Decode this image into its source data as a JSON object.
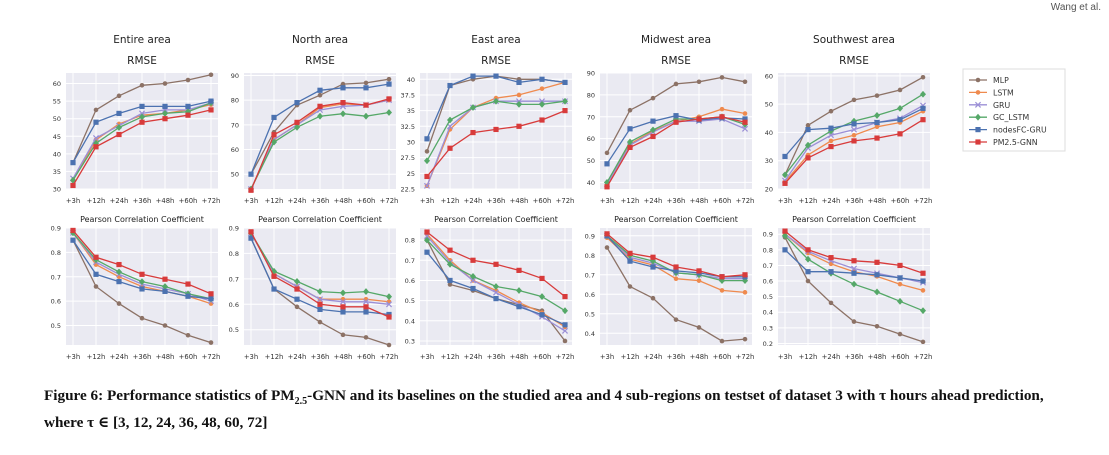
{
  "page_header": "Wang et al.",
  "caption": {
    "lead": "Figure 6: Performance statistics of PM",
    "sub": "2.5",
    "rest": "-GNN and its baselines on the studied area and 4 sub-regions on testset of dataset 3 with τ hours ahead prediction, where τ ∈ [3, 12, 24, 36, 48, 60, 72]"
  },
  "legend": [
    {
      "name": "MLP",
      "color": "#8c7266",
      "marker": "dot"
    },
    {
      "name": "LSTM",
      "color": "#ef8a4e",
      "marker": "dot"
    },
    {
      "name": "GRU",
      "color": "#9b8fd6",
      "marker": "x"
    },
    {
      "name": "GC_LSTM",
      "color": "#55a868",
      "marker": "diamond"
    },
    {
      "name": "nodesFC-GRU",
      "color": "#4c72b0",
      "marker": "square"
    },
    {
      "name": "PM2.5-GNN",
      "color": "#d83b3b",
      "marker": "square"
    }
  ],
  "chart_data": [
    {
      "type": "line",
      "region": "Entire area",
      "title": "RMSE",
      "categories": [
        "+3h",
        "+12h",
        "+24h",
        "+36h",
        "+48h",
        "+60h",
        "+72h"
      ],
      "ylim": [
        30,
        63
      ],
      "yticks": [
        30,
        35,
        40,
        45,
        50,
        55,
        60
      ],
      "series": [
        {
          "name": "MLP",
          "values": [
            37.5,
            52.5,
            56.5,
            59.5,
            60,
            61,
            62.5
          ]
        },
        {
          "name": "LSTM",
          "values": [
            32.5,
            44,
            48.5,
            51,
            51.5,
            52.5,
            54
          ]
        },
        {
          "name": "GRU",
          "values": [
            33,
            44.5,
            48,
            51.5,
            52.5,
            52.5,
            54.5
          ]
        },
        {
          "name": "GC_LSTM",
          "values": [
            32.5,
            43,
            47.5,
            50.5,
            51.5,
            52,
            54.5
          ]
        },
        {
          "name": "nodesFC-GRU",
          "values": [
            37.5,
            49,
            51.5,
            53.5,
            53.5,
            53.5,
            55
          ]
        },
        {
          "name": "PM2.5-GNN",
          "values": [
            31,
            42,
            45.5,
            49,
            50,
            51,
            52.5
          ]
        }
      ]
    },
    {
      "type": "line",
      "region": "North area",
      "title": "RMSE",
      "categories": [
        "+3h",
        "+12h",
        "+24h",
        "+36h",
        "+48h",
        "+60h",
        "+72h"
      ],
      "ylim": [
        44,
        91
      ],
      "yticks": [
        50,
        60,
        70,
        80,
        90
      ],
      "series": [
        {
          "name": "MLP",
          "values": [
            50,
            67,
            78,
            82,
            86.5,
            87,
            88.5
          ]
        },
        {
          "name": "LSTM",
          "values": [
            44,
            64,
            70,
            77,
            78.5,
            78,
            80
          ]
        },
        {
          "name": "GRU",
          "values": [
            44,
            64,
            70,
            76,
            77.5,
            78,
            80
          ]
        },
        {
          "name": "GC_LSTM",
          "values": [
            44,
            63,
            69,
            73.5,
            74.5,
            73.5,
            75
          ]
        },
        {
          "name": "nodesFC-GRU",
          "values": [
            50,
            73,
            79,
            84,
            85,
            85,
            86.5
          ]
        },
        {
          "name": "PM2.5-GNN",
          "values": [
            43.5,
            66,
            71,
            77.5,
            79,
            78,
            80.5
          ]
        }
      ]
    },
    {
      "type": "line",
      "region": "East area",
      "title": "RMSE",
      "categories": [
        "+3h",
        "+12h",
        "+24h",
        "+36h",
        "+48h",
        "+60h",
        "+72h"
      ],
      "ylim": [
        22.5,
        41
      ],
      "yticks": [
        22.5,
        25,
        27.5,
        30,
        32.5,
        35,
        37.5,
        40
      ],
      "series": [
        {
          "name": "MLP",
          "values": [
            28.5,
            39,
            40,
            40.5,
            40,
            40,
            39.5
          ]
        },
        {
          "name": "LSTM",
          "values": [
            23,
            32,
            35.5,
            37,
            37.5,
            38.5,
            39.5
          ]
        },
        {
          "name": "GRU",
          "values": [
            23,
            32.5,
            35.5,
            36.5,
            36.5,
            36.5,
            36.5
          ]
        },
        {
          "name": "GC_LSTM",
          "values": [
            27,
            33.5,
            35.5,
            36.5,
            36,
            36,
            36.5
          ]
        },
        {
          "name": "nodesFC-GRU",
          "values": [
            30.5,
            39,
            40.5,
            40.5,
            39.5,
            40,
            39.5
          ]
        },
        {
          "name": "PM2.5-GNN",
          "values": [
            24.5,
            29,
            31.5,
            32,
            32.5,
            33.5,
            35
          ]
        }
      ]
    },
    {
      "type": "line",
      "region": "Midwest area",
      "title": "RMSE",
      "categories": [
        "+3h",
        "+12h",
        "+24h",
        "+36h",
        "+48h",
        "+60h",
        "+72h"
      ],
      "ylim": [
        37,
        90
      ],
      "yticks": [
        40,
        50,
        60,
        70,
        80,
        90
      ],
      "series": [
        {
          "name": "MLP",
          "values": [
            53.5,
            73,
            78.5,
            85,
            86,
            88,
            86
          ]
        },
        {
          "name": "LSTM",
          "values": [
            39,
            57.5,
            63.5,
            68,
            70,
            73.5,
            71.5
          ]
        },
        {
          "name": "GRU",
          "values": [
            39,
            57,
            63,
            68,
            68,
            69,
            64.5
          ]
        },
        {
          "name": "GC_LSTM",
          "values": [
            40,
            58.5,
            64,
            69,
            69,
            70,
            66.5
          ]
        },
        {
          "name": "nodesFC-GRU",
          "values": [
            48.5,
            64.5,
            68,
            70.5,
            68.5,
            69.5,
            69
          ]
        },
        {
          "name": "PM2.5-GNN",
          "values": [
            38,
            56,
            61,
            67.5,
            69,
            70,
            67.5
          ]
        }
      ]
    },
    {
      "type": "line",
      "region": "Southwest area",
      "title": "RMSE",
      "categories": [
        "+3h",
        "+12h",
        "+24h",
        "+36h",
        "+48h",
        "+60h",
        "+72h"
      ],
      "ylim": [
        20,
        61
      ],
      "yticks": [
        20,
        30,
        40,
        50,
        60
      ],
      "series": [
        {
          "name": "MLP",
          "values": [
            25,
            42.5,
            47.5,
            51.5,
            53,
            55,
            59.5
          ]
        },
        {
          "name": "LSTM",
          "values": [
            22.5,
            32,
            37,
            39,
            42,
            43.5,
            47.5
          ]
        },
        {
          "name": "GRU",
          "values": [
            23,
            34.5,
            39,
            41,
            43.5,
            45,
            49.5
          ]
        },
        {
          "name": "GC_LSTM",
          "values": [
            25,
            35.5,
            40.5,
            44,
            46,
            48.5,
            53.5
          ]
        },
        {
          "name": "nodesFC-GRU",
          "values": [
            31.5,
            41,
            41.5,
            43,
            43.5,
            44.5,
            48.5
          ]
        },
        {
          "name": "PM2.5-GNN",
          "values": [
            22,
            31,
            35,
            37,
            38,
            39.5,
            44.5
          ]
        }
      ]
    },
    {
      "type": "line",
      "region": "Entire area",
      "title": "Pearson Correlation Coefficient",
      "categories": [
        "+3h",
        "+12h",
        "+24h",
        "+36h",
        "+48h",
        "+60h",
        "+72h"
      ],
      "ylim": [
        0.42,
        0.9
      ],
      "yticks": [
        0.5,
        0.6,
        0.7,
        0.8,
        0.9
      ],
      "series": [
        {
          "name": "MLP",
          "values": [
            0.85,
            0.66,
            0.59,
            0.53,
            0.5,
            0.46,
            0.43
          ]
        },
        {
          "name": "LSTM",
          "values": [
            0.88,
            0.75,
            0.7,
            0.66,
            0.64,
            0.62,
            0.59
          ]
        },
        {
          "name": "GRU",
          "values": [
            0.88,
            0.76,
            0.71,
            0.67,
            0.65,
            0.63,
            0.6
          ]
        },
        {
          "name": "GC_LSTM",
          "values": [
            0.88,
            0.77,
            0.72,
            0.68,
            0.66,
            0.63,
            0.61
          ]
        },
        {
          "name": "nodesFC-GRU",
          "values": [
            0.85,
            0.71,
            0.68,
            0.65,
            0.64,
            0.62,
            0.61
          ]
        },
        {
          "name": "PM2.5-GNN",
          "values": [
            0.89,
            0.78,
            0.75,
            0.71,
            0.69,
            0.67,
            0.63
          ]
        }
      ]
    },
    {
      "type": "line",
      "region": "North area",
      "title": "Pearson Correlation Coefficient",
      "categories": [
        "+3h",
        "+12h",
        "+24h",
        "+36h",
        "+48h",
        "+60h",
        "+72h"
      ],
      "ylim": [
        0.44,
        0.9
      ],
      "yticks": [
        0.5,
        0.6,
        0.7,
        0.8,
        0.9
      ],
      "series": [
        {
          "name": "MLP",
          "values": [
            0.86,
            0.66,
            0.59,
            0.53,
            0.48,
            0.47,
            0.44
          ]
        },
        {
          "name": "LSTM",
          "values": [
            0.88,
            0.72,
            0.67,
            0.62,
            0.62,
            0.62,
            0.61
          ]
        },
        {
          "name": "GRU",
          "values": [
            0.88,
            0.72,
            0.67,
            0.62,
            0.61,
            0.61,
            0.6
          ]
        },
        {
          "name": "GC_LSTM",
          "values": [
            0.88,
            0.73,
            0.69,
            0.65,
            0.645,
            0.65,
            0.63
          ]
        },
        {
          "name": "nodesFC-GRU",
          "values": [
            0.86,
            0.66,
            0.62,
            0.58,
            0.57,
            0.57,
            0.56
          ]
        },
        {
          "name": "PM2.5-GNN",
          "values": [
            0.885,
            0.71,
            0.66,
            0.6,
            0.59,
            0.59,
            0.55
          ]
        }
      ]
    },
    {
      "type": "line",
      "region": "East area",
      "title": "Pearson Correlation Coefficient",
      "categories": [
        "+3h",
        "+12h",
        "+24h",
        "+36h",
        "+48h",
        "+60h",
        "+72h"
      ],
      "ylim": [
        0.28,
        0.86
      ],
      "yticks": [
        0.3,
        0.4,
        0.5,
        0.6,
        0.7,
        0.8
      ],
      "series": [
        {
          "name": "MLP",
          "values": [
            0.8,
            0.58,
            0.55,
            0.51,
            0.48,
            0.45,
            0.3
          ]
        },
        {
          "name": "LSTM",
          "values": [
            0.83,
            0.7,
            0.6,
            0.55,
            0.49,
            0.44,
            0.37
          ]
        },
        {
          "name": "GRU",
          "values": [
            0.82,
            0.69,
            0.6,
            0.54,
            0.48,
            0.42,
            0.35
          ]
        },
        {
          "name": "GC_LSTM",
          "values": [
            0.8,
            0.68,
            0.62,
            0.57,
            0.55,
            0.52,
            0.45
          ]
        },
        {
          "name": "nodesFC-GRU",
          "values": [
            0.74,
            0.6,
            0.56,
            0.51,
            0.47,
            0.43,
            0.38
          ]
        },
        {
          "name": "PM2.5-GNN",
          "values": [
            0.84,
            0.75,
            0.7,
            0.68,
            0.65,
            0.61,
            0.52
          ]
        }
      ]
    },
    {
      "type": "line",
      "region": "Midwest area",
      "title": "Pearson Correlation Coefficient",
      "categories": [
        "+3h",
        "+12h",
        "+24h",
        "+36h",
        "+48h",
        "+60h",
        "+72h"
      ],
      "ylim": [
        0.34,
        0.94
      ],
      "yticks": [
        0.4,
        0.5,
        0.6,
        0.7,
        0.8,
        0.9
      ],
      "series": [
        {
          "name": "MLP",
          "values": [
            0.84,
            0.64,
            0.58,
            0.47,
            0.43,
            0.36,
            0.37
          ]
        },
        {
          "name": "LSTM",
          "values": [
            0.89,
            0.78,
            0.75,
            0.68,
            0.67,
            0.62,
            0.61
          ]
        },
        {
          "name": "GRU",
          "values": [
            0.9,
            0.79,
            0.76,
            0.71,
            0.7,
            0.68,
            0.68
          ]
        },
        {
          "name": "GC_LSTM",
          "values": [
            0.9,
            0.8,
            0.77,
            0.71,
            0.7,
            0.67,
            0.67
          ]
        },
        {
          "name": "nodesFC-GRU",
          "values": [
            0.9,
            0.77,
            0.74,
            0.72,
            0.71,
            0.69,
            0.69
          ]
        },
        {
          "name": "PM2.5-GNN",
          "values": [
            0.91,
            0.81,
            0.79,
            0.74,
            0.72,
            0.69,
            0.7
          ]
        }
      ]
    },
    {
      "type": "line",
      "region": "Southwest area",
      "title": "Pearson Correlation Coefficient",
      "categories": [
        "+3h",
        "+12h",
        "+24h",
        "+36h",
        "+48h",
        "+60h",
        "+72h"
      ],
      "ylim": [
        0.19,
        0.94
      ],
      "yticks": [
        0.2,
        0.3,
        0.4,
        0.5,
        0.6,
        0.7,
        0.8,
        0.9
      ],
      "series": [
        {
          "name": "MLP",
          "values": [
            0.88,
            0.6,
            0.46,
            0.34,
            0.31,
            0.26,
            0.21
          ]
        },
        {
          "name": "LSTM",
          "values": [
            0.9,
            0.78,
            0.71,
            0.66,
            0.63,
            0.58,
            0.54
          ]
        },
        {
          "name": "GRU",
          "values": [
            0.9,
            0.79,
            0.73,
            0.68,
            0.65,
            0.62,
            0.59
          ]
        },
        {
          "name": "GC_LSTM",
          "values": [
            0.89,
            0.74,
            0.65,
            0.58,
            0.53,
            0.47,
            0.41
          ]
        },
        {
          "name": "nodesFC-GRU",
          "values": [
            0.8,
            0.66,
            0.66,
            0.65,
            0.64,
            0.62,
            0.6
          ]
        },
        {
          "name": "PM2.5-GNN",
          "values": [
            0.92,
            0.8,
            0.75,
            0.73,
            0.72,
            0.7,
            0.65
          ]
        }
      ]
    }
  ]
}
